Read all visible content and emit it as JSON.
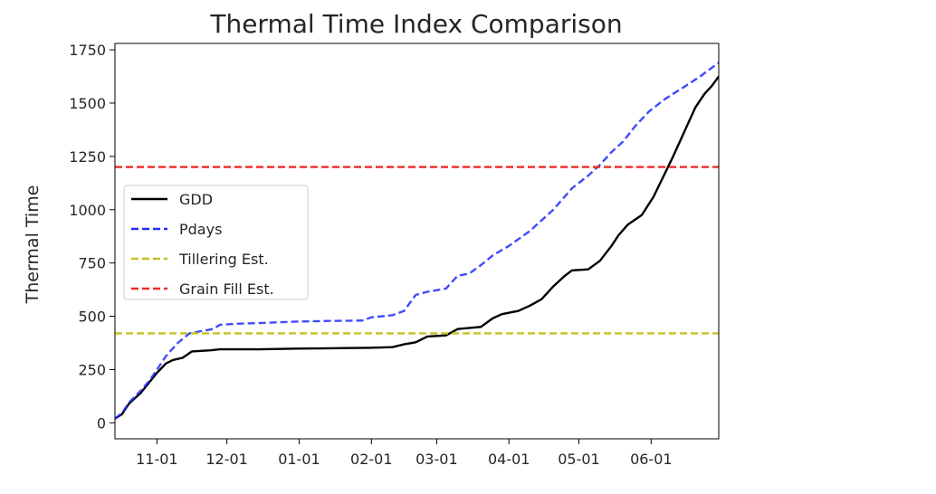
{
  "chart_data": {
    "type": "line",
    "title": "Thermal Time Index Comparison",
    "xlabel": "",
    "ylabel": "Thermal Time",
    "x_axis": {
      "type": "date",
      "range": [
        "2018-10-14",
        "2019-06-30"
      ],
      "ticks": [
        {
          "date": "2018-11-01",
          "label": "11-01"
        },
        {
          "date": "2018-12-01",
          "label": "12-01"
        },
        {
          "date": "2019-01-01",
          "label": "01-01"
        },
        {
          "date": "2019-02-01",
          "label": "02-01"
        },
        {
          "date": "2019-03-01",
          "label": "03-01"
        },
        {
          "date": "2019-04-01",
          "label": "04-01"
        },
        {
          "date": "2019-05-01",
          "label": "05-01"
        },
        {
          "date": "2019-06-01",
          "label": "06-01"
        }
      ]
    },
    "y_axis": {
      "range": [
        -75,
        1780
      ],
      "ticks": [
        0,
        250,
        500,
        750,
        1000,
        1250,
        1500,
        1750
      ]
    },
    "grid": false,
    "legend": {
      "placement": "center-left",
      "entries": [
        "GDD",
        "Pdays",
        "Tillering Est.",
        "Grain Fill Est."
      ]
    },
    "series": [
      {
        "name": "GDD",
        "color": "#000000",
        "style": "solid",
        "points": [
          [
            "2018-10-14",
            20
          ],
          [
            "2018-10-17",
            40
          ],
          [
            "2018-10-20",
            90
          ],
          [
            "2018-10-25",
            140
          ],
          [
            "2018-10-28",
            180
          ],
          [
            "2018-11-01",
            235
          ],
          [
            "2018-11-05",
            280
          ],
          [
            "2018-11-08",
            295
          ],
          [
            "2018-11-12",
            305
          ],
          [
            "2018-11-16",
            335
          ],
          [
            "2018-11-24",
            340
          ],
          [
            "2018-11-28",
            345
          ],
          [
            "2018-12-15",
            345
          ],
          [
            "2018-12-31",
            348
          ],
          [
            "2019-01-15",
            350
          ],
          [
            "2019-01-31",
            352
          ],
          [
            "2019-02-10",
            355
          ],
          [
            "2019-02-15",
            368
          ],
          [
            "2019-02-20",
            378
          ],
          [
            "2019-02-25",
            405
          ],
          [
            "2019-03-05",
            410
          ],
          [
            "2019-03-10",
            440
          ],
          [
            "2019-03-20",
            450
          ],
          [
            "2019-03-25",
            490
          ],
          [
            "2019-03-29",
            510
          ],
          [
            "2019-04-05",
            525
          ],
          [
            "2019-04-10",
            550
          ],
          [
            "2019-04-15",
            580
          ],
          [
            "2019-04-20",
            640
          ],
          [
            "2019-04-25",
            690
          ],
          [
            "2019-04-28",
            715
          ],
          [
            "2019-05-05",
            720
          ],
          [
            "2019-05-10",
            760
          ],
          [
            "2019-05-15",
            830
          ],
          [
            "2019-05-18",
            880
          ],
          [
            "2019-05-22",
            930
          ],
          [
            "2019-05-28",
            975
          ],
          [
            "2019-06-02",
            1060
          ],
          [
            "2019-06-06",
            1150
          ],
          [
            "2019-06-10",
            1240
          ],
          [
            "2019-06-15",
            1360
          ],
          [
            "2019-06-20",
            1480
          ],
          [
            "2019-06-24",
            1545
          ],
          [
            "2019-06-27",
            1580
          ],
          [
            "2019-06-30",
            1625
          ]
        ]
      },
      {
        "name": "Pdays",
        "color": "#1f2bff",
        "style": "dashed",
        "points": [
          [
            "2018-10-14",
            20
          ],
          [
            "2018-10-17",
            45
          ],
          [
            "2018-10-20",
            95
          ],
          [
            "2018-10-25",
            150
          ],
          [
            "2018-10-29",
            200
          ],
          [
            "2018-11-01",
            250
          ],
          [
            "2018-11-05",
            315
          ],
          [
            "2018-11-10",
            375
          ],
          [
            "2018-11-15",
            420
          ],
          [
            "2018-11-20",
            430
          ],
          [
            "2018-11-25",
            440
          ],
          [
            "2018-11-28",
            460
          ],
          [
            "2018-12-05",
            465
          ],
          [
            "2018-12-20",
            470
          ],
          [
            "2018-12-31",
            475
          ],
          [
            "2019-01-15",
            478
          ],
          [
            "2019-01-28",
            480
          ],
          [
            "2019-02-01",
            495
          ],
          [
            "2019-02-10",
            505
          ],
          [
            "2019-02-15",
            525
          ],
          [
            "2019-02-20",
            600
          ],
          [
            "2019-02-25",
            615
          ],
          [
            "2019-03-05",
            630
          ],
          [
            "2019-03-10",
            690
          ],
          [
            "2019-03-15",
            700
          ],
          [
            "2019-03-20",
            740
          ],
          [
            "2019-03-25",
            785
          ],
          [
            "2019-04-01",
            830
          ],
          [
            "2019-04-10",
            900
          ],
          [
            "2019-04-20",
            1000
          ],
          [
            "2019-04-28",
            1100
          ],
          [
            "2019-05-05",
            1160
          ],
          [
            "2019-05-10",
            1210
          ],
          [
            "2019-05-15",
            1270
          ],
          [
            "2019-05-20",
            1320
          ],
          [
            "2019-05-25",
            1390
          ],
          [
            "2019-05-31",
            1460
          ],
          [
            "2019-06-07",
            1520
          ],
          [
            "2019-06-15",
            1575
          ],
          [
            "2019-06-22",
            1625
          ],
          [
            "2019-06-30",
            1690
          ]
        ]
      },
      {
        "name": "Tillering Est.",
        "color": "#c8c020",
        "style": "dashed",
        "points": [
          [
            "2018-10-14",
            420
          ],
          [
            "2019-06-30",
            420
          ]
        ]
      },
      {
        "name": "Grain Fill Est.",
        "color": "#ee2a24",
        "style": "dashed",
        "points": [
          [
            "2018-10-14",
            1200
          ],
          [
            "2019-06-30",
            1200
          ]
        ]
      }
    ]
  }
}
